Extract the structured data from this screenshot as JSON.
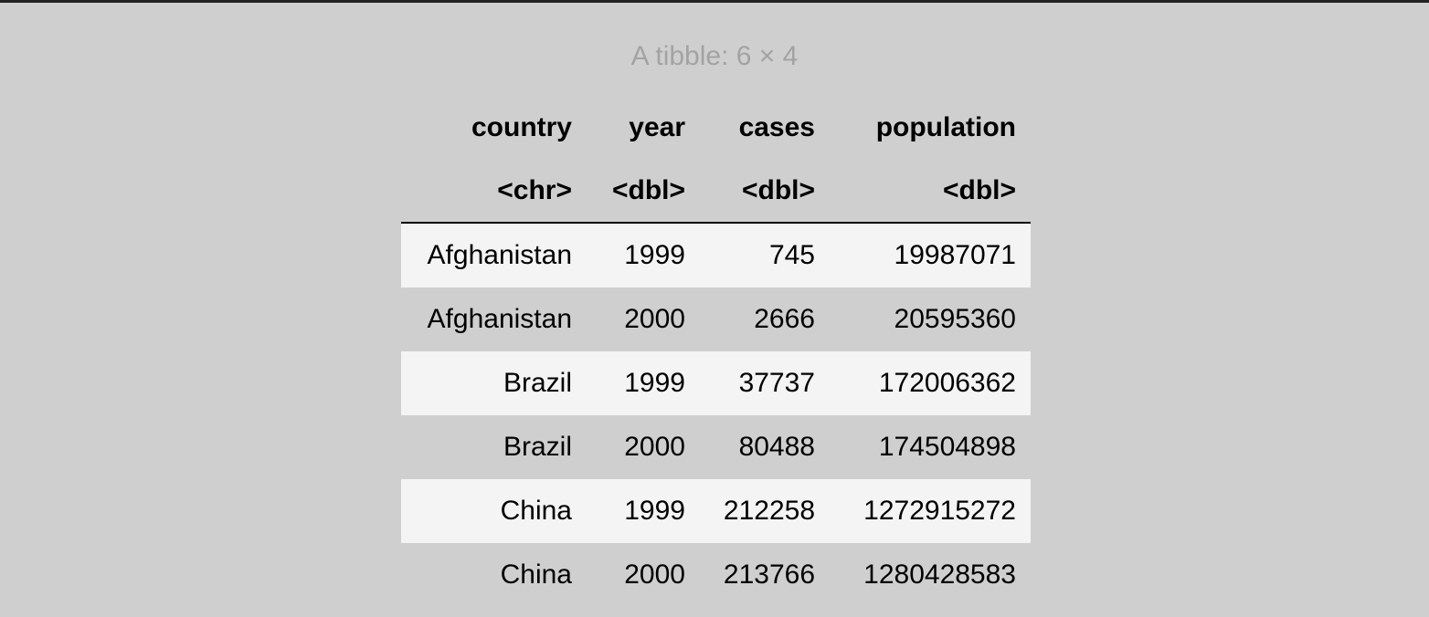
{
  "table": {
    "caption": "A tibble: 6 × 4",
    "columns": [
      {
        "name": "country",
        "type": "<chr>"
      },
      {
        "name": "year",
        "type": "<dbl>"
      },
      {
        "name": "cases",
        "type": "<dbl>"
      },
      {
        "name": "population",
        "type": "<dbl>"
      }
    ],
    "rows": [
      {
        "country": "Afghanistan",
        "year": "1999",
        "cases": "745",
        "population": "19987071"
      },
      {
        "country": "Afghanistan",
        "year": "2000",
        "cases": "2666",
        "population": "20595360"
      },
      {
        "country": "Brazil",
        "year": "1999",
        "cases": "37737",
        "population": "172006362"
      },
      {
        "country": "Brazil",
        "year": "2000",
        "cases": "80488",
        "population": "174504898"
      },
      {
        "country": "China",
        "year": "1999",
        "cases": "212258",
        "population": "1272915272"
      },
      {
        "country": "China",
        "year": "2000",
        "cases": "213766",
        "population": "1280428583"
      }
    ]
  },
  "colors": {
    "background": "#cfcfcf",
    "striped_row": "#f4f4f4",
    "caption_text": "#a3a3a3",
    "top_border": "#222222"
  }
}
